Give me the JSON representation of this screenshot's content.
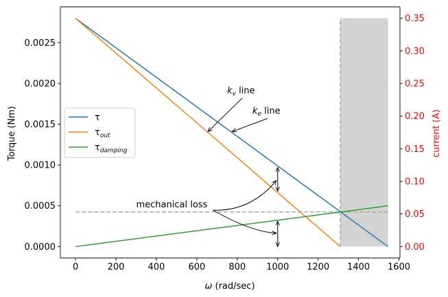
{
  "chart_data": {
    "type": "line",
    "xlabel": "ω (rad/sec)",
    "ylabel": "Torque (Nm)",
    "y2label": "current (A)",
    "xlim": [
      -75,
      1605
    ],
    "ylim": [
      -0.00014,
      0.00294
    ],
    "y2lim": [
      -0.0175,
      0.3675
    ],
    "xticks": [
      0,
      200,
      400,
      600,
      800,
      1000,
      1200,
      1400,
      1600
    ],
    "xtick_labels": [
      "0",
      "200",
      "400",
      "600",
      "800",
      "1000",
      "1200",
      "1400",
      "1600"
    ],
    "yticks": [
      0,
      0.0005,
      0.001,
      0.0015,
      0.002,
      0.0025
    ],
    "ytick_labels": [
      "0.0000",
      "0.0005",
      "0.0010",
      "0.0015",
      "0.0020",
      "0.0025"
    ],
    "y2ticks": [
      0,
      0.05,
      0.1,
      0.15,
      0.2,
      0.25,
      0.3,
      0.35
    ],
    "y2tick_labels": [
      "0.00",
      "0.05",
      "0.10",
      "0.15",
      "0.20",
      "0.25",
      "0.30",
      "0.35"
    ],
    "grid": false,
    "legend_position": "center-left",
    "series": [
      {
        "name": "τ",
        "name_sub": "",
        "color": "#1f77b4",
        "x": [
          0,
          1546
        ],
        "y": [
          0.0028,
          0.0
        ]
      },
      {
        "name": "τ",
        "name_sub": "out",
        "color": "#ff7f0e",
        "x": [
          0,
          1310
        ],
        "y": [
          0.0028,
          0.0
        ]
      },
      {
        "name": "τ",
        "name_sub": "damping",
        "color": "#2ca02c",
        "x": [
          0,
          1546
        ],
        "y": [
          0.0,
          0.0005
        ]
      }
    ],
    "reference_lines": [
      {
        "orientation": "horizontal",
        "y": 0.000424,
        "x_range": [
          0,
          1546
        ],
        "color": "#aaaaaa",
        "style": "dashed"
      },
      {
        "orientation": "vertical",
        "x": 1310,
        "y_range": [
          0,
          0.0028
        ],
        "color": "#aaaaaa",
        "style": "dashed"
      }
    ],
    "shaded_region": {
      "x_range": [
        1310,
        1546
      ],
      "y_range": [
        0,
        0.0028
      ],
      "color": "#d3d3d3"
    },
    "annotations": [
      {
        "text": "k",
        "sub": "v",
        "suffix": " line",
        "x": 750,
        "y": 0.00188,
        "arrow_to": [
          655,
          0.00141
        ]
      },
      {
        "text": "k",
        "sub": "e",
        "suffix": " line",
        "x": 875,
        "y": 0.00163,
        "arrow_to": [
          775,
          0.00141
        ]
      },
      {
        "text": "mechanical loss",
        "x": 300,
        "y": 0.00048,
        "curved_arrows_to": [
          [
            1000,
            0.00081
          ],
          [
            1000,
            0.000165
          ]
        ]
      }
    ],
    "double_arrows": [
      {
        "x": 1000,
        "y_range": [
          0.00068,
          0.00097
        ]
      },
      {
        "x": 1000,
        "y_range": [
          0.0,
          0.00031
        ]
      }
    ]
  },
  "colors": {
    "secondary_axis": "#ff0000",
    "axis": "#000000",
    "guide_line": "#aaaaaa",
    "shade": "#d3d3d3"
  }
}
